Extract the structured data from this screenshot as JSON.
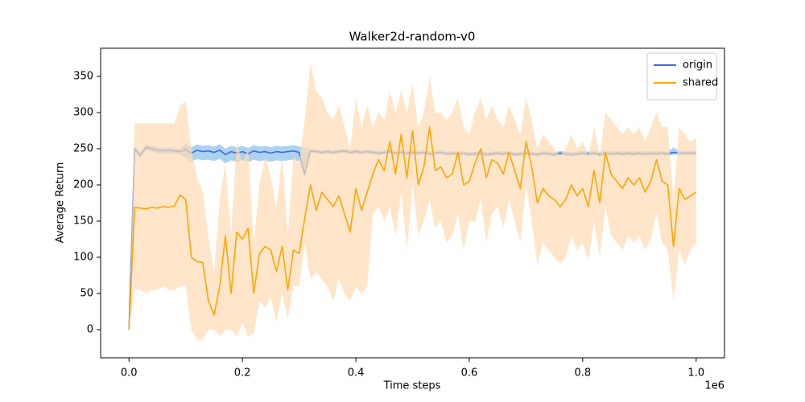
{
  "chart_data": {
    "type": "line",
    "title": "Walker2d-random-v0",
    "xlabel": "Time steps",
    "ylabel": "Average Return",
    "x_offset_label": "1e6",
    "xlim": [
      -0.05,
      1.05
    ],
    "ylim": [
      -38.9,
      388.9
    ],
    "xticks": [
      {
        "value": 0,
        "label": "0.0"
      },
      0.2,
      0.4,
      0.6,
      0.8,
      {
        "value": 1,
        "label": "1.0"
      }
    ],
    "yticks": [
      0,
      50,
      100,
      150,
      200,
      250,
      300,
      350
    ],
    "legend": "upper right",
    "grid": false,
    "x": [
      0,
      0.01,
      0.02,
      0.03,
      0.04,
      0.05,
      0.06,
      0.07,
      0.08,
      0.09,
      0.1,
      0.11,
      0.12,
      0.13,
      0.14,
      0.15,
      0.16,
      0.17,
      0.18,
      0.19,
      0.2,
      0.21,
      0.22,
      0.23,
      0.24,
      0.25,
      0.26,
      0.27,
      0.28,
      0.29,
      0.3,
      0.31,
      0.32,
      0.33,
      0.34,
      0.35,
      0.36,
      0.37,
      0.38,
      0.39,
      0.4,
      0.41,
      0.42,
      0.43,
      0.44,
      0.45,
      0.46,
      0.47,
      0.48,
      0.49,
      0.5,
      0.51,
      0.52,
      0.53,
      0.54,
      0.55,
      0.56,
      0.57,
      0.58,
      0.59,
      0.6,
      0.61,
      0.62,
      0.63,
      0.64,
      0.65,
      0.66,
      0.67,
      0.68,
      0.69,
      0.7,
      0.71,
      0.72,
      0.73,
      0.74,
      0.75,
      0.76,
      0.77,
      0.78,
      0.79,
      0.8,
      0.81,
      0.82,
      0.83,
      0.84,
      0.85,
      0.86,
      0.87,
      0.88,
      0.89,
      0.9,
      0.91,
      0.92,
      0.93,
      0.94,
      0.95,
      0.96,
      0.97,
      0.98,
      0.99,
      1
    ],
    "series": [
      {
        "name": "origin",
        "color": "#4169e1",
        "band_color": "#87bfe8",
        "values": [
          0,
          250,
          241,
          252,
          250,
          248,
          247,
          248,
          247,
          246,
          249,
          244,
          248,
          246,
          247,
          245,
          248,
          242,
          246,
          244,
          246,
          243,
          247,
          245,
          246,
          244,
          246,
          245,
          246,
          247,
          245,
          215,
          247,
          246,
          245,
          246,
          245,
          246,
          247,
          245,
          246,
          245,
          246,
          245,
          244,
          245,
          246,
          244,
          245,
          244,
          245,
          244,
          245,
          243,
          244,
          245,
          243,
          244,
          243,
          244,
          242,
          243,
          244,
          242,
          243,
          244,
          243,
          244,
          242,
          243,
          244,
          243,
          242,
          244,
          243,
          242,
          244,
          243,
          242,
          243,
          244,
          243,
          244,
          242,
          244,
          243,
          244,
          243,
          244,
          243,
          244,
          243,
          244,
          243,
          244,
          243,
          245,
          244,
          244,
          244,
          244
        ],
        "lower": [
          0,
          246,
          237,
          248,
          246,
          244,
          243,
          244,
          243,
          242,
          237,
          232,
          236,
          234,
          235,
          233,
          236,
          230,
          234,
          232,
          234,
          231,
          235,
          233,
          234,
          232,
          234,
          233,
          234,
          235,
          233,
          210,
          244,
          243,
          242,
          243,
          242,
          243,
          244,
          242,
          243,
          242,
          243,
          242,
          241,
          242,
          243,
          241,
          242,
          241,
          242,
          241,
          242,
          240,
          241,
          242,
          240,
          241,
          240,
          241,
          239,
          240,
          241,
          239,
          240,
          241,
          240,
          241,
          239,
          240,
          241,
          240,
          239,
          241,
          240,
          239,
          241,
          240,
          239,
          240,
          241,
          240,
          241,
          239,
          241,
          240,
          241,
          240,
          241,
          240,
          241,
          240,
          241,
          240,
          241,
          240,
          242,
          241,
          241,
          241,
          241
        ],
        "upper": [
          0,
          254,
          245,
          256,
          254,
          252,
          251,
          252,
          251,
          250,
          257,
          252,
          256,
          254,
          255,
          253,
          256,
          250,
          254,
          252,
          254,
          251,
          255,
          253,
          254,
          252,
          254,
          253,
          254,
          255,
          253,
          252,
          250,
          249,
          248,
          249,
          248,
          249,
          250,
          248,
          249,
          248,
          249,
          248,
          247,
          248,
          249,
          247,
          248,
          247,
          248,
          247,
          248,
          246,
          247,
          248,
          246,
          247,
          246,
          247,
          245,
          246,
          247,
          245,
          246,
          247,
          246,
          247,
          245,
          246,
          247,
          246,
          245,
          247,
          246,
          245,
          247,
          246,
          245,
          246,
          247,
          246,
          247,
          245,
          247,
          246,
          247,
          246,
          247,
          246,
          247,
          246,
          247,
          246,
          247,
          246,
          252,
          247,
          247,
          247,
          247
        ]
      },
      {
        "name": "shared",
        "color": "#ffa500",
        "band_color": "#ffdcb4",
        "values": [
          0,
          169,
          168,
          167,
          169,
          168,
          170,
          169,
          171,
          186,
          180,
          100,
          94,
          93,
          40,
          20,
          60,
          130,
          50,
          135,
          125,
          140,
          50,
          105,
          115,
          110,
          80,
          115,
          55,
          110,
          105,
          155,
          200,
          165,
          190,
          180,
          170,
          185,
          160,
          135,
          195,
          165,
          190,
          215,
          235,
          220,
          260,
          215,
          270,
          210,
          275,
          200,
          225,
          280,
          220,
          225,
          210,
          215,
          245,
          200,
          205,
          230,
          250,
          210,
          235,
          230,
          215,
          245,
          220,
          195,
          260,
          225,
          175,
          195,
          185,
          180,
          170,
          180,
          200,
          185,
          195,
          170,
          220,
          175,
          245,
          215,
          205,
          195,
          210,
          200,
          210,
          190,
          205,
          235,
          205,
          200,
          115,
          195,
          180,
          185,
          190
        ],
        "lower": [
          0,
          55,
          55,
          50,
          55,
          55,
          60,
          55,
          55,
          60,
          60,
          0,
          -15,
          -15,
          0,
          0,
          -10,
          0,
          0,
          -10,
          10,
          -10,
          -5,
          40,
          30,
          45,
          10,
          50,
          15,
          60,
          60,
          120,
          70,
          80,
          70,
          60,
          40,
          70,
          50,
          40,
          60,
          50,
          60,
          160,
          170,
          150,
          170,
          130,
          190,
          110,
          200,
          130,
          150,
          180,
          140,
          150,
          120,
          130,
          160,
          110,
          150,
          150,
          180,
          120,
          160,
          170,
          140,
          180,
          150,
          120,
          200,
          150,
          90,
          120,
          110,
          100,
          90,
          100,
          130,
          110,
          120,
          95,
          150,
          100,
          170,
          130,
          120,
          110,
          130,
          120,
          130,
          110,
          125,
          160,
          120,
          110,
          40,
          110,
          90,
          110,
          120
        ],
        "upper": [
          0,
          285,
          285,
          285,
          285,
          285,
          285,
          285,
          285,
          310,
          315,
          250,
          210,
          190,
          130,
          80,
          180,
          230,
          130,
          260,
          230,
          250,
          120,
          200,
          240,
          210,
          170,
          240,
          130,
          240,
          230,
          290,
          370,
          330,
          320,
          300,
          290,
          310,
          280,
          250,
          320,
          280,
          310,
          280,
          300,
          290,
          330,
          300,
          330,
          300,
          340,
          280,
          300,
          350,
          300,
          300,
          290,
          300,
          320,
          280,
          270,
          300,
          320,
          290,
          310,
          290,
          280,
          310,
          290,
          270,
          320,
          290,
          250,
          270,
          260,
          250,
          240,
          250,
          270,
          250,
          260,
          240,
          280,
          240,
          300,
          290,
          280,
          270,
          280,
          270,
          280,
          260,
          280,
          300,
          280,
          280,
          180,
          280,
          270,
          260,
          265
        ]
      }
    ]
  }
}
